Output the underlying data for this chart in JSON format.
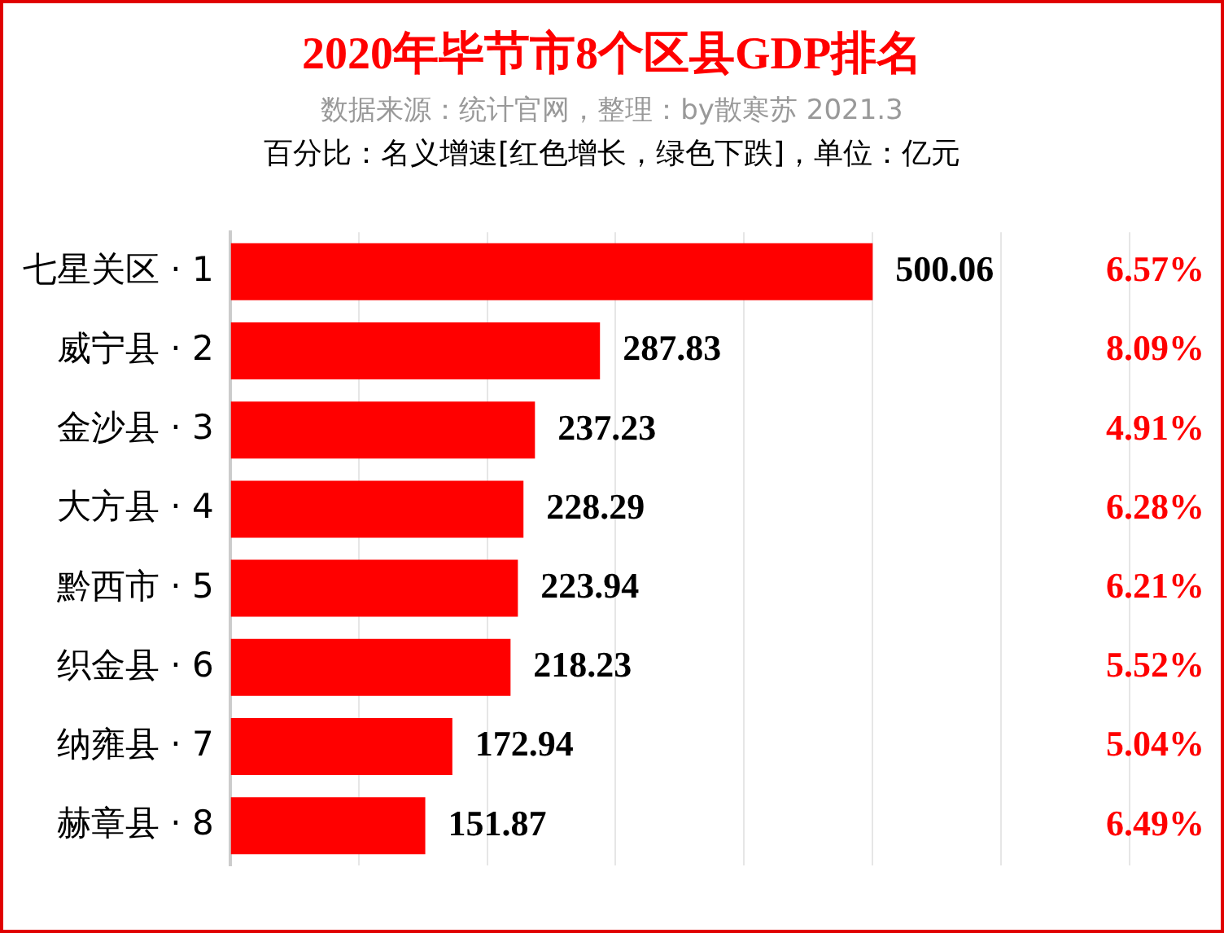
{
  "chart_data": {
    "type": "bar",
    "orientation": "horizontal",
    "title": "2020年毕节市8个区县GDP排名",
    "subtitle": "数据来源：统计官网，整理：by散寒苏 2021.3",
    "categories": [
      "七星关区 · 1",
      "威宁县 · 2",
      "金沙县 · 3",
      "大方县 · 4",
      "黔西市 · 5",
      "织金县 · 6",
      "纳雍县 · 7",
      "赫章县 · 8"
    ],
    "values": [
      500.06,
      287.83,
      237.23,
      228.29,
      223.94,
      218.23,
      172.94,
      151.87
    ],
    "color": "#ff0000",
    "data_labels": true,
    "xlim": [
      0,
      700
    ],
    "xticks": [
      {
        "value": 0,
        "label": null
      },
      {
        "value": 100,
        "label": null
      },
      {
        "value": 200,
        "label": null
      },
      {
        "value": 300,
        "label": null
      },
      {
        "value": 400,
        "label": null
      },
      {
        "value": 500,
        "label": null
      },
      {
        "value": 600,
        "label": null
      },
      {
        "value": 700,
        "label": null
      }
    ],
    "grid": "x",
    "tick_labels": "y",
    "annotations": [
      "百分比：名义增速[红色增长，绿色下跌]，单位：亿元",
      "6.57%",
      "8.09%",
      "4.91%",
      "6.28%",
      "6.21%",
      "5.52%",
      "5.04%",
      "6.49%"
    ]
  }
}
